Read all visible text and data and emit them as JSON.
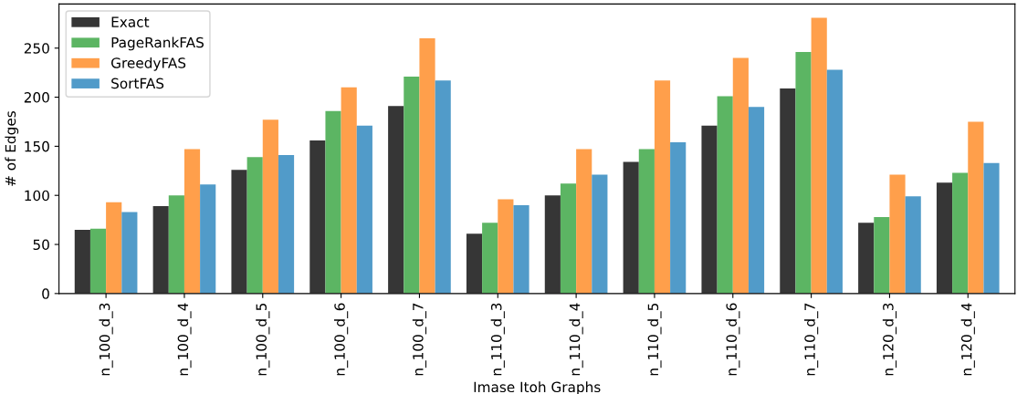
{
  "chart_data": {
    "type": "bar",
    "xlabel": "Imase Itoh Graphs",
    "ylabel": "# of Edges",
    "categories": [
      "n_100_d_3",
      "n_100_d_4",
      "n_100_d_5",
      "n_100_d_6",
      "n_100_d_7",
      "n_110_d_3",
      "n_110_d_4",
      "n_110_d_5",
      "n_110_d_6",
      "n_110_d_7",
      "n_120_d_3",
      "n_120_d_4"
    ],
    "series": [
      {
        "name": "Exact",
        "color": "#363636",
        "values": [
          65,
          89,
          126,
          156,
          191,
          61,
          100,
          134,
          171,
          209,
          72,
          113
        ]
      },
      {
        "name": "PageRankFAS",
        "color": "#5cb563",
        "values": [
          66,
          100,
          139,
          186,
          221,
          72,
          112,
          147,
          201,
          246,
          78,
          123
        ]
      },
      {
        "name": "GreedyFAS",
        "color": "#ff9f4b",
        "values": [
          93,
          147,
          177,
          210,
          260,
          96,
          147,
          217,
          240,
          281,
          121,
          175
        ]
      },
      {
        "name": "SortFAS",
        "color": "#519bc9",
        "values": [
          83,
          111,
          141,
          171,
          217,
          90,
          121,
          154,
          190,
          228,
          99,
          133
        ]
      }
    ],
    "ylim": [
      0,
      295
    ],
    "yticks": [
      0,
      50,
      100,
      150,
      200,
      250
    ],
    "grid": false,
    "legend": "top left"
  }
}
